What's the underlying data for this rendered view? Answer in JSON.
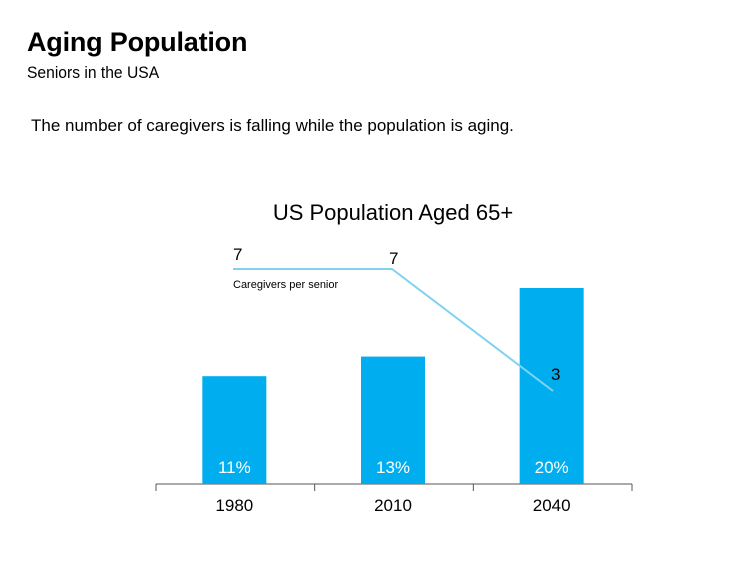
{
  "slide": {
    "title": "Aging Population",
    "subtitle": "Seniors in the USA",
    "note": "The number of caregivers is falling while the population is aging."
  },
  "chart_data": {
    "type": "bar",
    "title": "US Population Aged 65+",
    "categories": [
      "1980",
      "2010",
      "2040"
    ],
    "bar_series": {
      "values": [
        11,
        13,
        20
      ],
      "labels": [
        "11%",
        "13%",
        "20%"
      ],
      "color": "#00aeef",
      "label_color": "#ffffff"
    },
    "line_series": {
      "name": "Caregivers per senior",
      "values": [
        7,
        7,
        3
      ],
      "labels": [
        "7",
        "7",
        "3"
      ],
      "color": "#7fd3f0"
    },
    "axis_color": "#555555",
    "grid": false
  }
}
